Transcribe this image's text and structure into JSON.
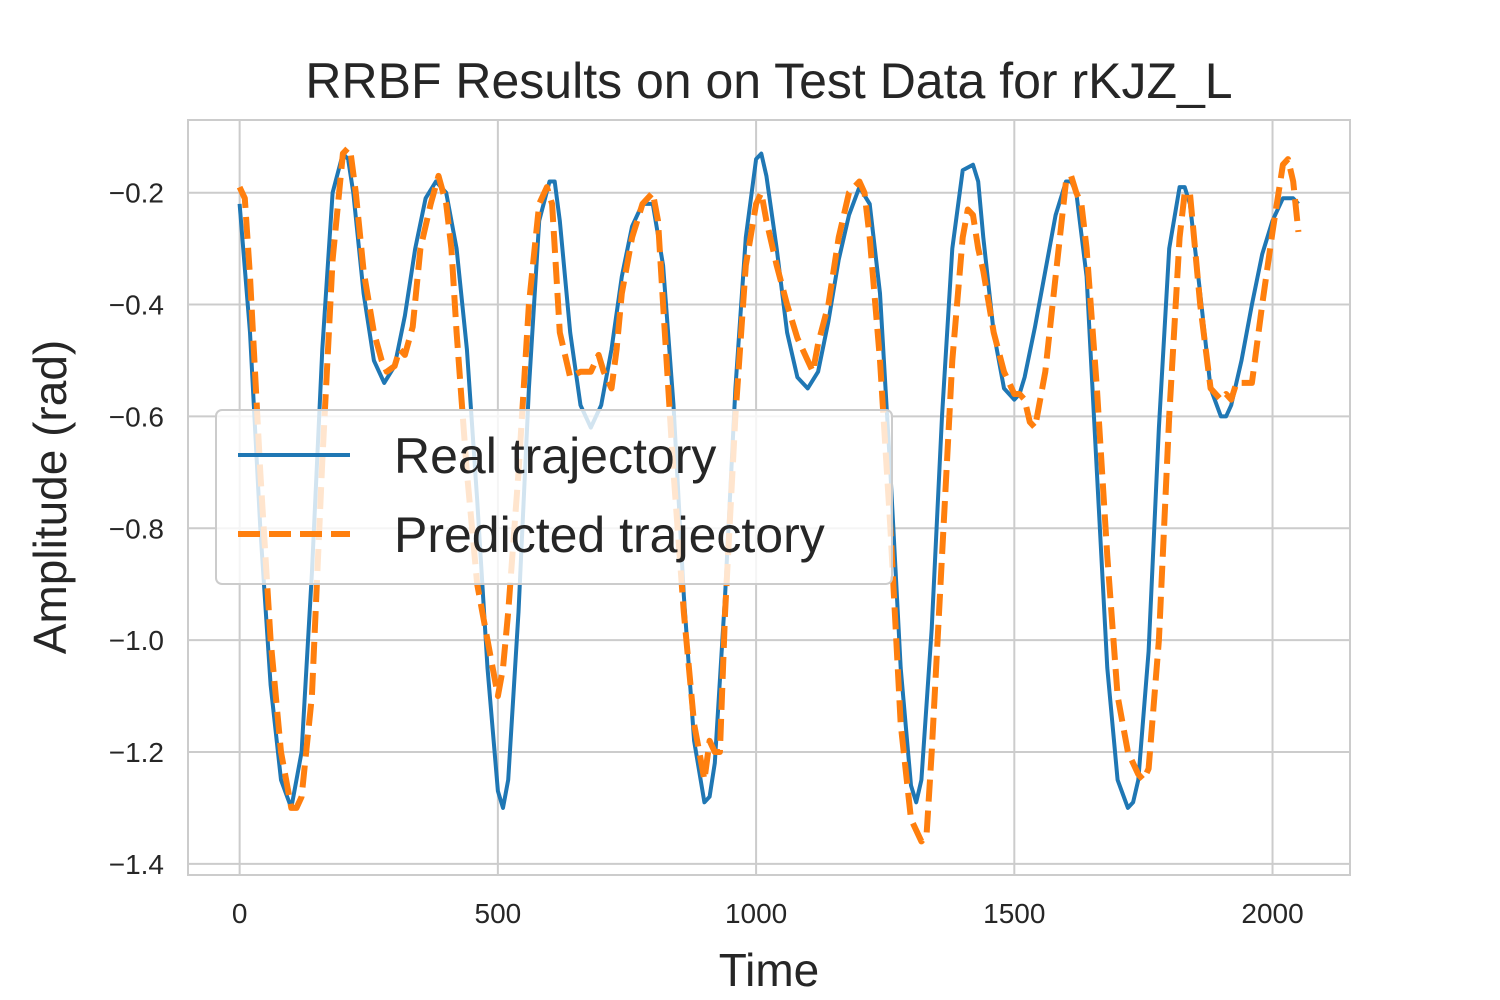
{
  "chart_data": {
    "type": "line",
    "title": "RRBF Results on on Test Data for rKJZ_L",
    "xlabel": "Time",
    "ylabel": "Amplitude (rad)",
    "xlim": [
      -100,
      2150
    ],
    "ylim": [
      -1.42,
      -0.07
    ],
    "xticks": [
      0,
      500,
      1000,
      1500,
      2000
    ],
    "xtick_labels": [
      "0",
      "500",
      "1000",
      "1500",
      "2000"
    ],
    "yticks": [
      -1.4,
      -1.2,
      -1.0,
      -0.8,
      -0.6,
      -0.4,
      -0.2
    ],
    "ytick_labels": [
      "−1.4",
      "−1.2",
      "−1.0",
      "−0.8",
      "−0.6",
      "−0.4",
      "−0.2"
    ],
    "grid": true,
    "legend_position": "center-left",
    "series": [
      {
        "name": "Real trajectory",
        "color": "#1f77b4",
        "style": "solid",
        "x": [
          0,
          20,
          40,
          60,
          80,
          100,
          120,
          140,
          160,
          180,
          200,
          210,
          220,
          240,
          260,
          280,
          300,
          320,
          340,
          360,
          380,
          400,
          420,
          440,
          460,
          480,
          500,
          510,
          520,
          540,
          560,
          580,
          600,
          610,
          620,
          640,
          660,
          680,
          700,
          720,
          740,
          760,
          780,
          800,
          820,
          840,
          860,
          880,
          900,
          910,
          920,
          940,
          960,
          980,
          1000,
          1010,
          1020,
          1040,
          1060,
          1080,
          1100,
          1120,
          1140,
          1160,
          1180,
          1200,
          1220,
          1240,
          1260,
          1280,
          1300,
          1310,
          1320,
          1340,
          1360,
          1380,
          1400,
          1420,
          1430,
          1440,
          1460,
          1480,
          1500,
          1510,
          1520,
          1540,
          1560,
          1580,
          1600,
          1610,
          1620,
          1640,
          1660,
          1680,
          1700,
          1720,
          1730,
          1740,
          1760,
          1780,
          1800,
          1820,
          1830,
          1840,
          1860,
          1880,
          1900,
          1910,
          1920,
          1940,
          1960,
          1980,
          2000,
          2020,
          2040,
          2050
        ],
        "y": [
          -0.22,
          -0.45,
          -0.8,
          -1.08,
          -1.25,
          -1.3,
          -1.2,
          -0.88,
          -0.48,
          -0.2,
          -0.13,
          -0.14,
          -0.2,
          -0.38,
          -0.5,
          -0.54,
          -0.51,
          -0.42,
          -0.3,
          -0.21,
          -0.18,
          -0.2,
          -0.3,
          -0.48,
          -0.75,
          -1.05,
          -1.27,
          -1.3,
          -1.25,
          -0.95,
          -0.55,
          -0.25,
          -0.18,
          -0.18,
          -0.25,
          -0.45,
          -0.58,
          -0.62,
          -0.58,
          -0.48,
          -0.35,
          -0.26,
          -0.22,
          -0.22,
          -0.33,
          -0.58,
          -0.92,
          -1.18,
          -1.29,
          -1.28,
          -1.22,
          -0.92,
          -0.55,
          -0.28,
          -0.14,
          -0.13,
          -0.17,
          -0.3,
          -0.45,
          -0.53,
          -0.55,
          -0.52,
          -0.43,
          -0.32,
          -0.24,
          -0.19,
          -0.22,
          -0.38,
          -0.7,
          -1.05,
          -1.26,
          -1.29,
          -1.25,
          -0.98,
          -0.6,
          -0.3,
          -0.16,
          -0.15,
          -0.18,
          -0.28,
          -0.45,
          -0.55,
          -0.57,
          -0.56,
          -0.53,
          -0.44,
          -0.34,
          -0.24,
          -0.18,
          -0.18,
          -0.2,
          -0.35,
          -0.7,
          -1.05,
          -1.25,
          -1.3,
          -1.29,
          -1.25,
          -1.02,
          -0.62,
          -0.3,
          -0.19,
          -0.19,
          -0.22,
          -0.38,
          -0.55,
          -0.6,
          -0.6,
          -0.58,
          -0.5,
          -0.4,
          -0.31,
          -0.25,
          -0.21,
          -0.21,
          -0.22
        ]
      },
      {
        "name": "Predicted trajectory",
        "color": "#ff7f0e",
        "style": "dashed",
        "x": [
          0,
          10,
          20,
          40,
          60,
          80,
          100,
          110,
          120,
          140,
          160,
          180,
          200,
          210,
          215,
          225,
          240,
          260,
          275,
          285,
          300,
          310,
          320,
          335,
          350,
          370,
          385,
          400,
          410,
          420,
          440,
          460,
          480,
          490,
          500,
          510,
          520,
          540,
          560,
          580,
          595,
          605,
          620,
          640,
          660,
          680,
          695,
          705,
          720,
          730,
          740,
          760,
          780,
          800,
          810,
          820,
          840,
          860,
          880,
          890,
          900,
          910,
          920,
          930,
          940,
          960,
          980,
          1000,
          1010,
          1020,
          1040,
          1060,
          1080,
          1100,
          1110,
          1120,
          1140,
          1160,
          1180,
          1200,
          1210,
          1220,
          1240,
          1260,
          1280,
          1300,
          1320,
          1330,
          1340,
          1360,
          1380,
          1400,
          1410,
          1420,
          1430,
          1440,
          1460,
          1480,
          1500,
          1510,
          1520,
          1530,
          1540,
          1560,
          1580,
          1600,
          1610,
          1620,
          1630,
          1640,
          1660,
          1680,
          1700,
          1720,
          1740,
          1750,
          1760,
          1780,
          1800,
          1820,
          1830,
          1840,
          1860,
          1880,
          1900,
          1910,
          1920,
          1930,
          1940,
          1960,
          1980,
          2000,
          2020,
          2030,
          2040,
          2050
        ],
        "y": [
          -0.19,
          -0.21,
          -0.35,
          -0.7,
          -1.0,
          -1.2,
          -1.3,
          -1.3,
          -1.28,
          -1.1,
          -0.68,
          -0.32,
          -0.13,
          -0.12,
          -0.13,
          -0.2,
          -0.34,
          -0.45,
          -0.5,
          -0.52,
          -0.51,
          -0.48,
          -0.49,
          -0.44,
          -0.3,
          -0.22,
          -0.17,
          -0.22,
          -0.3,
          -0.45,
          -0.7,
          -0.9,
          -1.0,
          -1.05,
          -1.1,
          -1.05,
          -0.95,
          -0.7,
          -0.4,
          -0.22,
          -0.19,
          -0.22,
          -0.45,
          -0.53,
          -0.52,
          -0.52,
          -0.49,
          -0.52,
          -0.55,
          -0.48,
          -0.38,
          -0.28,
          -0.22,
          -0.2,
          -0.25,
          -0.4,
          -0.7,
          -0.95,
          -1.15,
          -1.2,
          -1.25,
          -1.18,
          -1.2,
          -1.2,
          -0.95,
          -0.6,
          -0.33,
          -0.22,
          -0.2,
          -0.25,
          -0.33,
          -0.4,
          -0.46,
          -0.5,
          -0.52,
          -0.47,
          -0.4,
          -0.28,
          -0.2,
          -0.18,
          -0.2,
          -0.28,
          -0.5,
          -0.8,
          -1.15,
          -1.32,
          -1.36,
          -1.35,
          -1.2,
          -0.85,
          -0.5,
          -0.28,
          -0.23,
          -0.24,
          -0.3,
          -0.34,
          -0.45,
          -0.52,
          -0.56,
          -0.56,
          -0.57,
          -0.61,
          -0.62,
          -0.52,
          -0.35,
          -0.18,
          -0.17,
          -0.2,
          -0.22,
          -0.3,
          -0.55,
          -0.85,
          -1.1,
          -1.2,
          -1.24,
          -1.25,
          -1.23,
          -1.0,
          -0.6,
          -0.28,
          -0.2,
          -0.2,
          -0.4,
          -0.55,
          -0.57,
          -0.56,
          -0.57,
          -0.54,
          -0.54,
          -0.54,
          -0.4,
          -0.27,
          -0.15,
          -0.14,
          -0.18,
          -0.27
        ]
      }
    ]
  }
}
